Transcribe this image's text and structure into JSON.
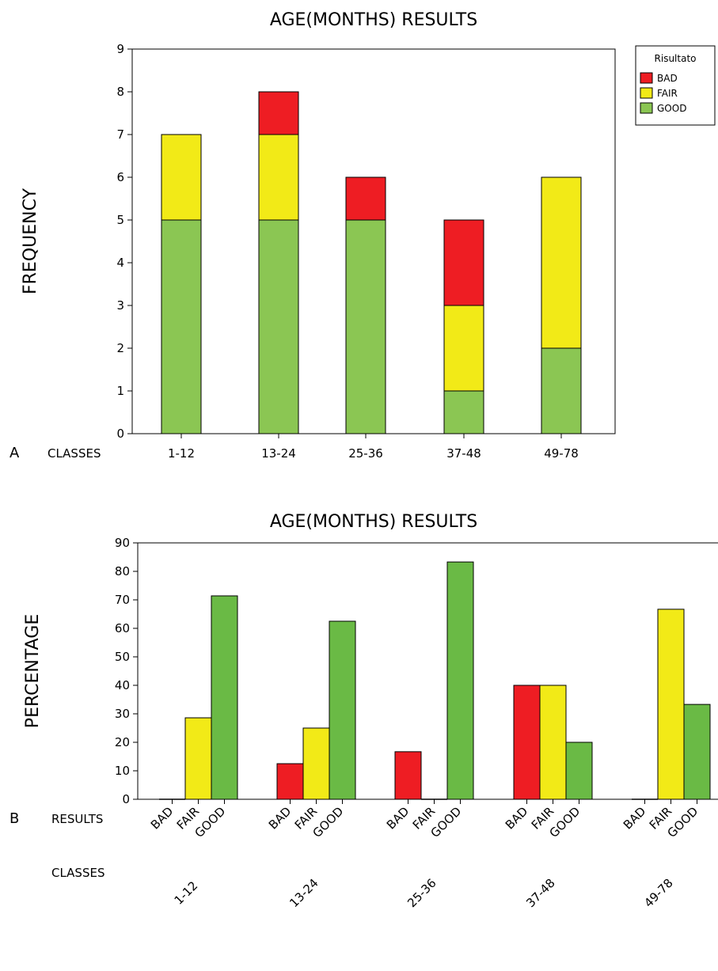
{
  "colors": {
    "BAD": "#ee1d23",
    "FAIR": "#f2ea17",
    "GOOD_A": "#8bc653",
    "GOOD_B": "#6aba45"
  },
  "chart_data": [
    {
      "type": "bar",
      "stacked": true,
      "panel": "A",
      "title": "AGE(MONTHS) RESULTS",
      "ylabel": "FREQUENCY",
      "xlabel": "CLASSES",
      "categories": [
        "1-12",
        "13-24",
        "25-36",
        "37-48",
        "49-78"
      ],
      "ylim": [
        0,
        9
      ],
      "yticks": [
        0,
        1,
        2,
        3,
        4,
        5,
        6,
        7,
        8,
        9
      ],
      "legend": {
        "title": "Risultato",
        "placement": "top-right",
        "entries": [
          "BAD",
          "FAIR",
          "GOOD"
        ]
      },
      "series": [
        {
          "name": "GOOD",
          "values": [
            5,
            5,
            5,
            1,
            2
          ]
        },
        {
          "name": "FAIR",
          "values": [
            2,
            2,
            0,
            2,
            4
          ]
        },
        {
          "name": "BAD",
          "values": [
            0,
            1,
            1,
            2,
            0
          ]
        }
      ]
    },
    {
      "type": "bar",
      "stacked": false,
      "panel": "B",
      "title": "AGE(MONTHS) RESULTS",
      "ylabel": "PERCENTAGE",
      "xlabel_results": "RESULTS",
      "xlabel_classes": "CLASSES",
      "categories": [
        "1-12",
        "13-24",
        "25-36",
        "37-48",
        "49-78"
      ],
      "subcategories": [
        "BAD",
        "FAIR",
        "GOOD"
      ],
      "ylim": [
        0,
        90
      ],
      "yticks": [
        0,
        10,
        20,
        30,
        40,
        50,
        60,
        70,
        80,
        90
      ],
      "series": [
        {
          "name": "BAD",
          "values": [
            0,
            12.5,
            16.7,
            40,
            0
          ]
        },
        {
          "name": "FAIR",
          "values": [
            28.6,
            25,
            0,
            40,
            66.7
          ]
        },
        {
          "name": "GOOD",
          "values": [
            71.4,
            62.5,
            83.3,
            20,
            33.3
          ]
        }
      ]
    }
  ]
}
